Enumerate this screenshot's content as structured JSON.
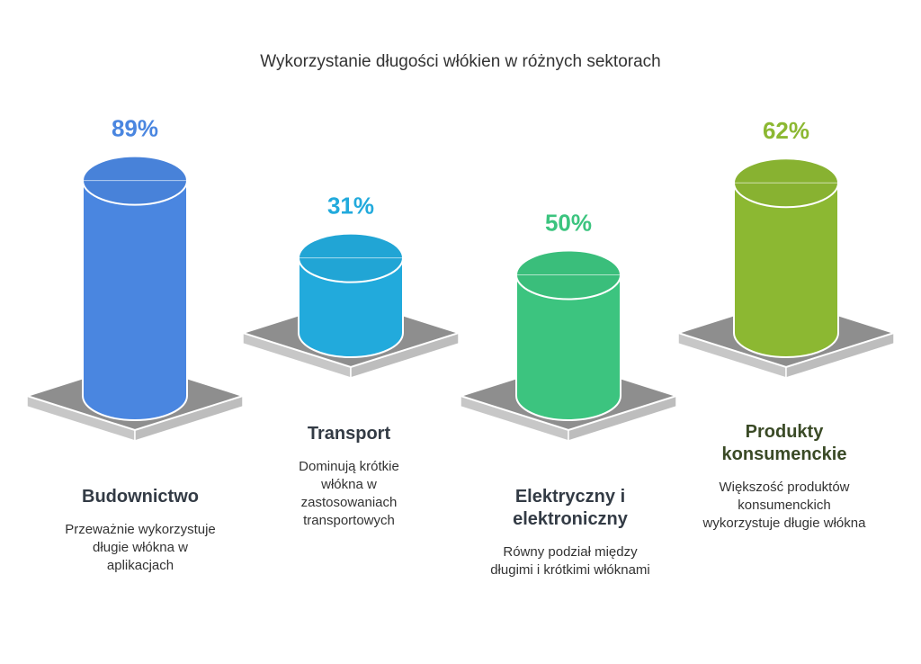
{
  "title": "Wykorzystanie długości włókien w różnych sektorach",
  "chart_data": {
    "type": "bar",
    "title": "Wykorzystanie długości włókien w różnych sektorach",
    "categories": [
      "Budownictwo",
      "Transport",
      "Elektryczny i elektroniczny",
      "Produkty konsumenckie"
    ],
    "values": [
      89,
      31,
      50,
      62
    ],
    "value_labels": [
      "89%",
      "31%",
      "50%",
      "62%"
    ],
    "descriptions": [
      "Przeważnie wykorzystuje długie włókna w aplikacjach",
      "Dominują krótkie włókna w zastosowaniach transportowych",
      "Równy podział między długimi i krótkimi włóknami",
      "Większość produktów konsumenckich wykorzystuje długie włókna"
    ],
    "colors": [
      "#4a86e0",
      "#22aadc",
      "#3cc47f",
      "#8cb832"
    ],
    "title_colors": [
      "#333b45",
      "#333b45",
      "#333b45",
      "#3a4a26"
    ]
  }
}
